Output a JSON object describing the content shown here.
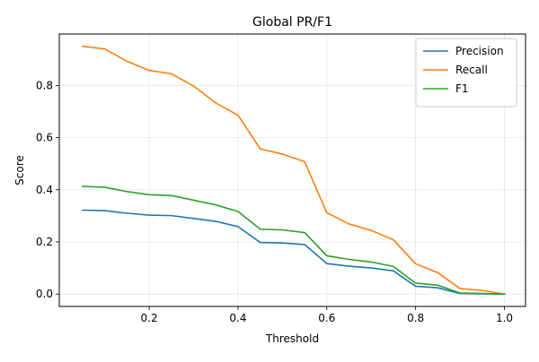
{
  "chart_data": {
    "type": "line",
    "title": "Global PR/F1",
    "xlabel": "Threshold",
    "ylabel": "Score",
    "xlim": [
      -0.0025,
      1.0475
    ],
    "ylim": [
      -0.0475,
      0.9975
    ],
    "xticks": [
      0.2,
      0.4,
      0.6,
      0.8,
      1.0
    ],
    "xtick_labels": [
      "0.2",
      "0.4",
      "0.6",
      "0.8",
      "1.0"
    ],
    "yticks": [
      0.0,
      0.2,
      0.4,
      0.6,
      0.8
    ],
    "ytick_labels": [
      "0.0",
      "0.2",
      "0.4",
      "0.6",
      "0.8"
    ],
    "grid": true,
    "legend_position": "top-right",
    "x": [
      0.05,
      0.1,
      0.15,
      0.2,
      0.25,
      0.3,
      0.35,
      0.4,
      0.45,
      0.5,
      0.55,
      0.6,
      0.65,
      0.7,
      0.75,
      0.8,
      0.85,
      0.9,
      0.95,
      1.0
    ],
    "series": [
      {
        "name": "Precision",
        "color": "#1f77b4",
        "values": [
          0.322,
          0.32,
          0.31,
          0.303,
          0.301,
          0.29,
          0.279,
          0.259,
          0.198,
          0.196,
          0.19,
          0.117,
          0.107,
          0.1,
          0.089,
          0.03,
          0.024,
          0.002,
          0.001,
          0.0
        ]
      },
      {
        "name": "Recall",
        "color": "#ff7f0e",
        "values": [
          0.951,
          0.94,
          0.893,
          0.858,
          0.845,
          0.798,
          0.733,
          0.686,
          0.557,
          0.537,
          0.508,
          0.312,
          0.269,
          0.244,
          0.208,
          0.116,
          0.082,
          0.021,
          0.014,
          0.0
        ]
      },
      {
        "name": "F1",
        "color": "#2ca02c",
        "values": [
          0.413,
          0.41,
          0.393,
          0.381,
          0.378,
          0.36,
          0.342,
          0.317,
          0.249,
          0.246,
          0.236,
          0.147,
          0.133,
          0.123,
          0.106,
          0.042,
          0.034,
          0.004,
          0.002,
          0.0
        ]
      }
    ]
  }
}
